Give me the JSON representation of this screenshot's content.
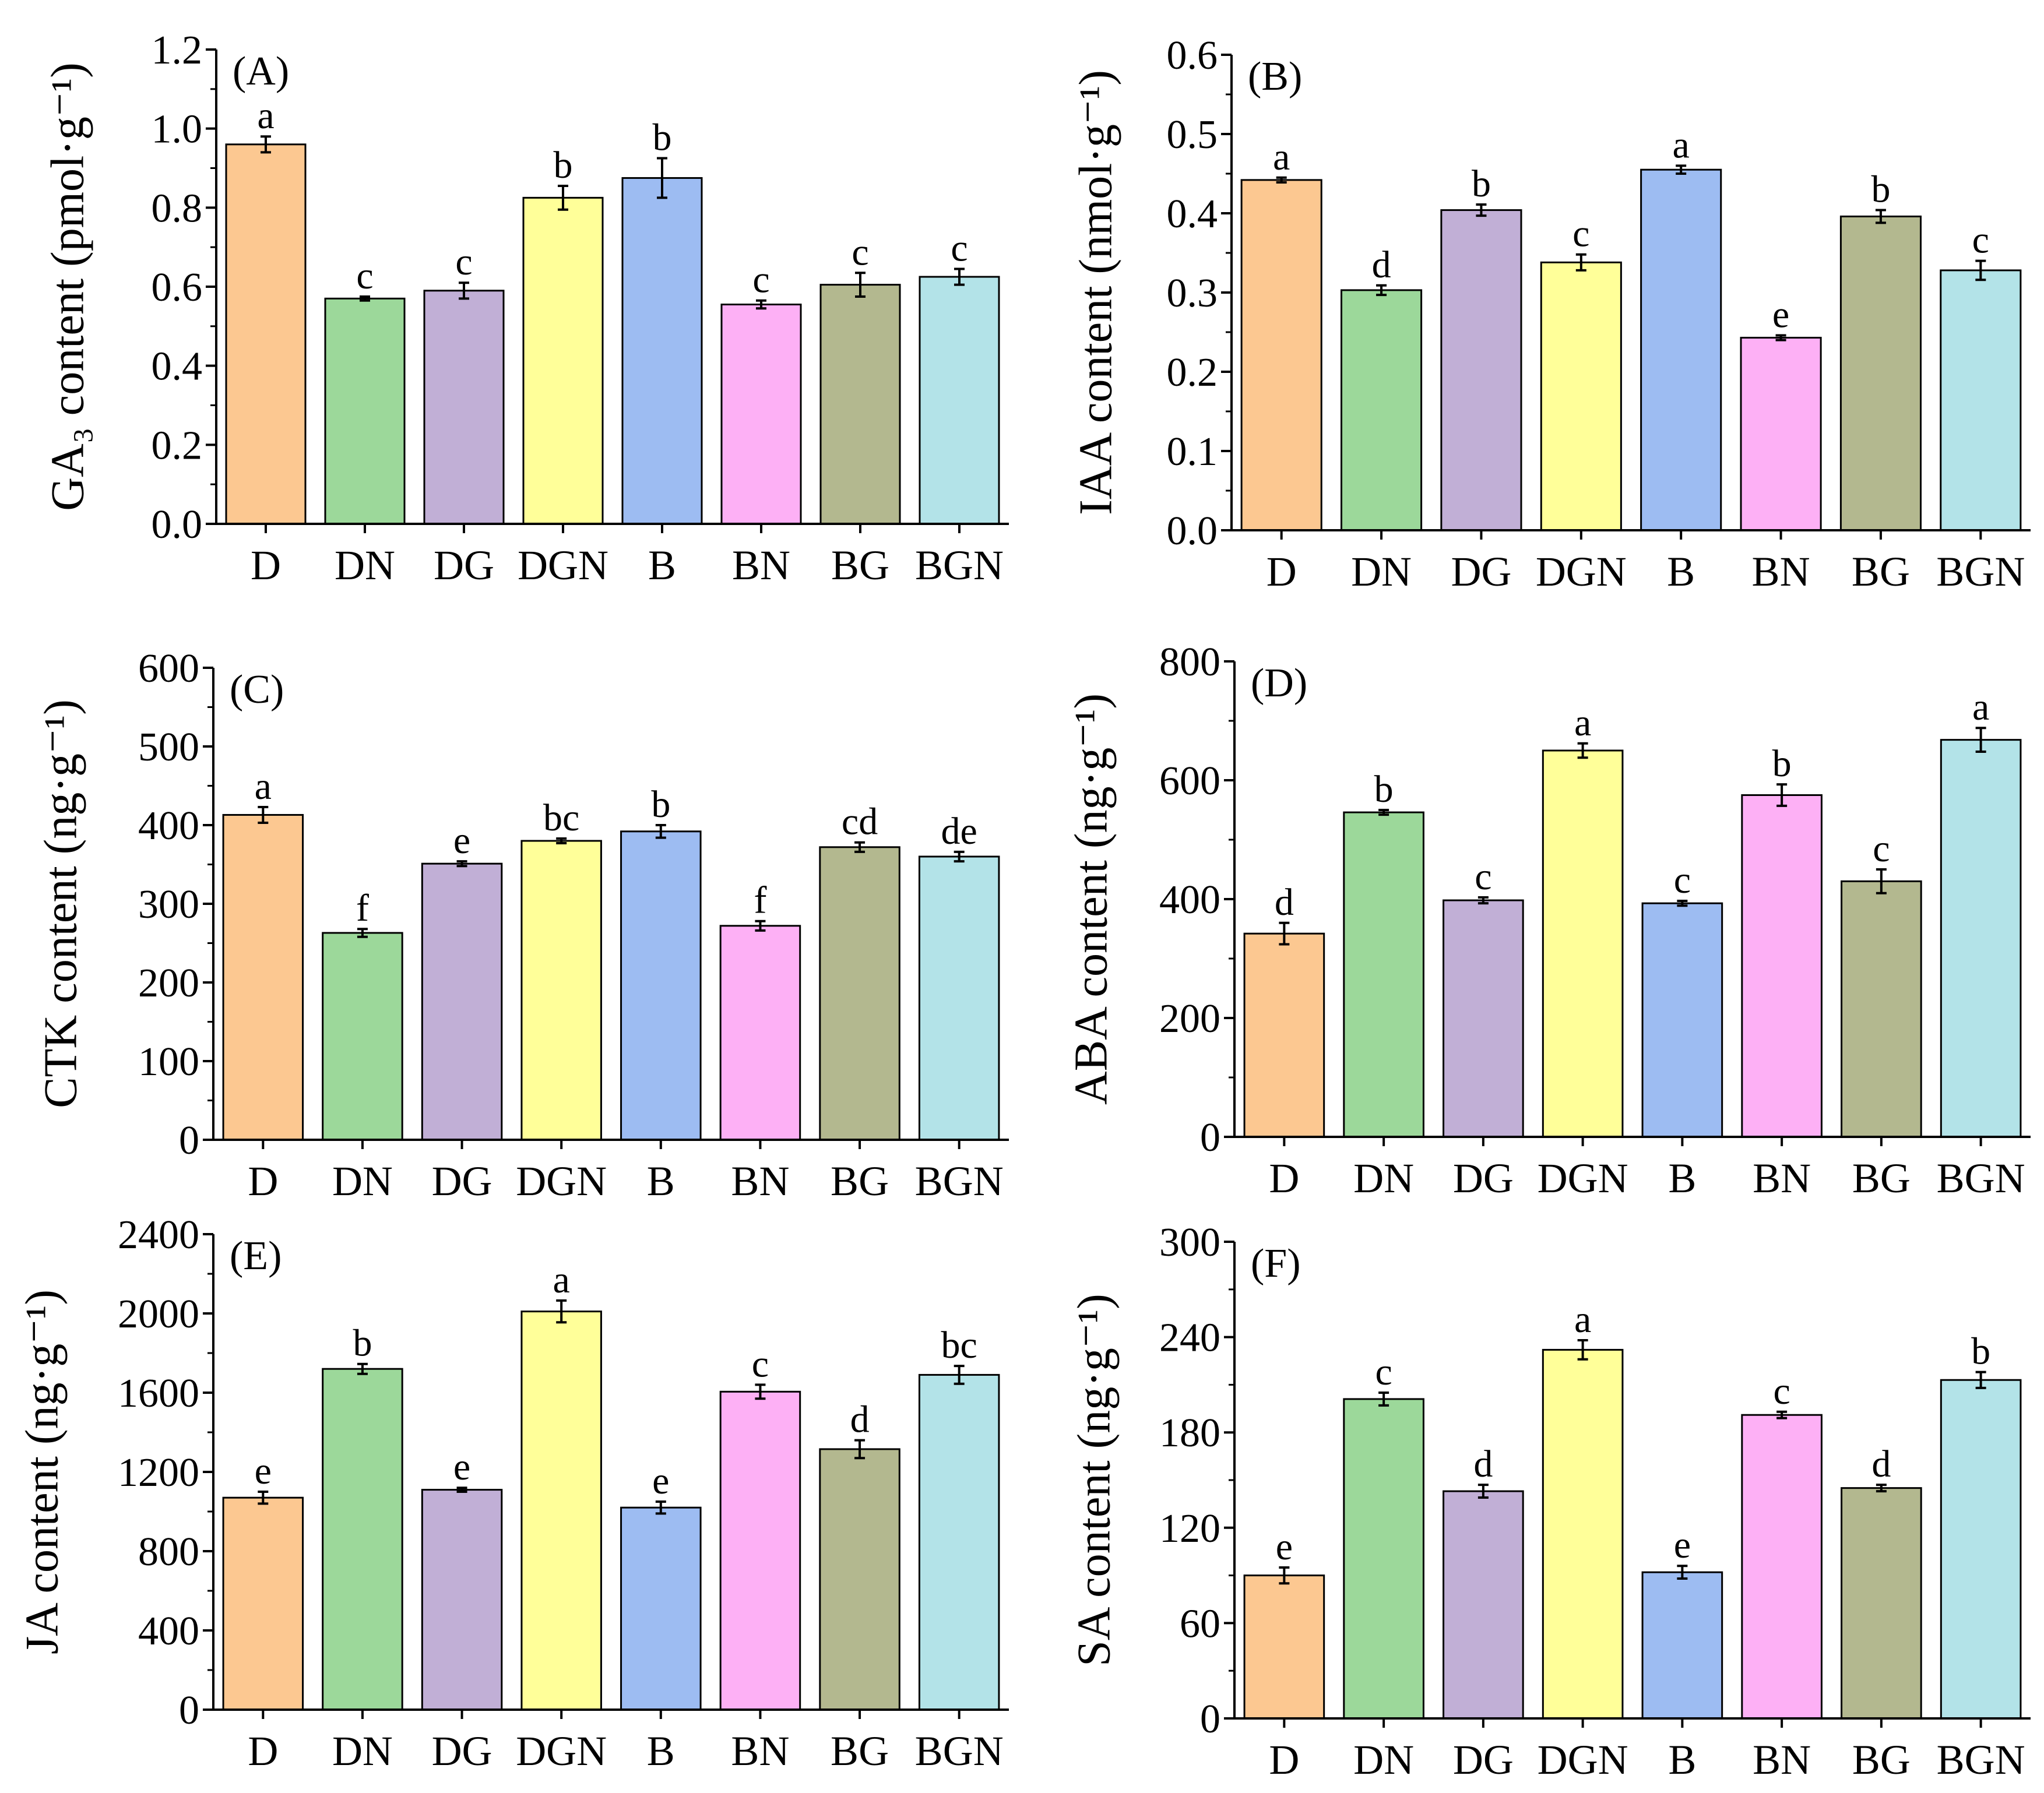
{
  "colors": {
    "D": "#FCC891",
    "DN": "#9CD89A",
    "DG": "#C1AFD6",
    "DGN": "#FFFF99",
    "B": "#9DBCF2",
    "BN": "#FDB0F5",
    "BG": "#B3B88F",
    "BGN": "#B3E3E8"
  },
  "chart_data": [
    {
      "type": "bar",
      "panel": "(A)",
      "ylabel": "GA₃ content (pmol·g⁻¹)",
      "ylim": [
        0,
        1.2
      ],
      "yticks": [
        "0.0",
        "0.2",
        "0.4",
        "0.6",
        "0.8",
        "1.0",
        "1.2"
      ],
      "ytick_values": [
        0,
        0.2,
        0.4,
        0.6,
        0.8,
        1.0,
        1.2
      ],
      "categories": [
        "D",
        "DN",
        "DG",
        "DGN",
        "B",
        "BN",
        "BG",
        "BGN"
      ],
      "values": [
        0.96,
        0.57,
        0.59,
        0.825,
        0.875,
        0.555,
        0.605,
        0.625
      ],
      "errors": [
        0.02,
        0.005,
        0.02,
        0.03,
        0.05,
        0.01,
        0.03,
        0.02
      ],
      "letters": [
        "a",
        "c",
        "c",
        "b",
        "b",
        "c",
        "c",
        "c"
      ]
    },
    {
      "type": "bar",
      "panel": "(B)",
      "ylabel": "IAA content (nmol·g⁻¹)",
      "ylim": [
        0,
        0.6
      ],
      "yticks": [
        "0.0",
        "0.1",
        "0.2",
        "0.3",
        "0.4",
        "0.5",
        "0.6"
      ],
      "ytick_values": [
        0,
        0.1,
        0.2,
        0.3,
        0.4,
        0.5,
        0.6
      ],
      "categories": [
        "D",
        "DN",
        "DG",
        "DGN",
        "B",
        "BN",
        "BG",
        "BGN"
      ],
      "values": [
        0.442,
        0.303,
        0.404,
        0.338,
        0.455,
        0.243,
        0.396,
        0.328
      ],
      "errors": [
        0.003,
        0.006,
        0.007,
        0.01,
        0.005,
        0.003,
        0.008,
        0.012
      ],
      "letters": [
        "a",
        "d",
        "b",
        "c",
        "a",
        "e",
        "b",
        "c"
      ]
    },
    {
      "type": "bar",
      "panel": "(C)",
      "ylabel": "CTK content (ng·g⁻¹)",
      "ylim": [
        0,
        600
      ],
      "yticks": [
        "0",
        "100",
        "200",
        "300",
        "400",
        "500",
        "600"
      ],
      "ytick_values": [
        0,
        100,
        200,
        300,
        400,
        500,
        600
      ],
      "categories": [
        "D",
        "DN",
        "DG",
        "DGN",
        "B",
        "BN",
        "BG",
        "BGN"
      ],
      "values": [
        413,
        263,
        351,
        380,
        392,
        272,
        372,
        360
      ],
      "errors": [
        10,
        5,
        3,
        3,
        8,
        6,
        6,
        6
      ],
      "letters": [
        "a",
        "f",
        "e",
        "bc",
        "b",
        "f",
        "cd",
        "de"
      ]
    },
    {
      "type": "bar",
      "panel": "(D)",
      "ylabel": "ABA content (ng·g⁻¹)",
      "ylim": [
        0,
        800
      ],
      "yticks": [
        "0",
        "200",
        "400",
        "600",
        "800"
      ],
      "ytick_values": [
        0,
        200,
        400,
        600,
        800
      ],
      "categories": [
        "D",
        "DN",
        "DG",
        "DGN",
        "B",
        "BN",
        "BG",
        "BGN"
      ],
      "values": [
        342,
        546,
        398,
        650,
        393,
        575,
        430,
        668
      ],
      "errors": [
        18,
        4,
        5,
        12,
        4,
        18,
        20,
        20
      ],
      "letters": [
        "d",
        "b",
        "c",
        "a",
        "c",
        "b",
        "c",
        "a"
      ]
    },
    {
      "type": "bar",
      "panel": "(E)",
      "ylabel": "JA content (ng·g⁻¹)",
      "ylim": [
        0,
        2400
      ],
      "yticks": [
        "0",
        "400",
        "800",
        "1200",
        "1600",
        "2000",
        "2400"
      ],
      "ytick_values": [
        0,
        400,
        800,
        1200,
        1600,
        2000,
        2400
      ],
      "categories": [
        "D",
        "DN",
        "DG",
        "DGN",
        "B",
        "BN",
        "BG",
        "BGN"
      ],
      "values": [
        1070,
        1720,
        1110,
        2010,
        1020,
        1605,
        1315,
        1690
      ],
      "errors": [
        30,
        25,
        10,
        55,
        30,
        35,
        45,
        45
      ],
      "letters": [
        "e",
        "b",
        "e",
        "a",
        "e",
        "c",
        "d",
        "bc"
      ]
    },
    {
      "type": "bar",
      "panel": "(F)",
      "ylabel": "SA content (ng·g⁻¹)",
      "ylim": [
        0,
        300
      ],
      "yticks": [
        "0",
        "60",
        "120",
        "180",
        "240",
        "300"
      ],
      "ytick_values": [
        0,
        60,
        120,
        180,
        240,
        300
      ],
      "categories": [
        "D",
        "DN",
        "DG",
        "DGN",
        "B",
        "BN",
        "BG",
        "BGN"
      ],
      "values": [
        90,
        201,
        143,
        232,
        92,
        191,
        145,
        213
      ],
      "errors": [
        5,
        4,
        4,
        6,
        4,
        2,
        2,
        5
      ],
      "letters": [
        "e",
        "c",
        "d",
        "a",
        "e",
        "c",
        "d",
        "b"
      ]
    }
  ]
}
